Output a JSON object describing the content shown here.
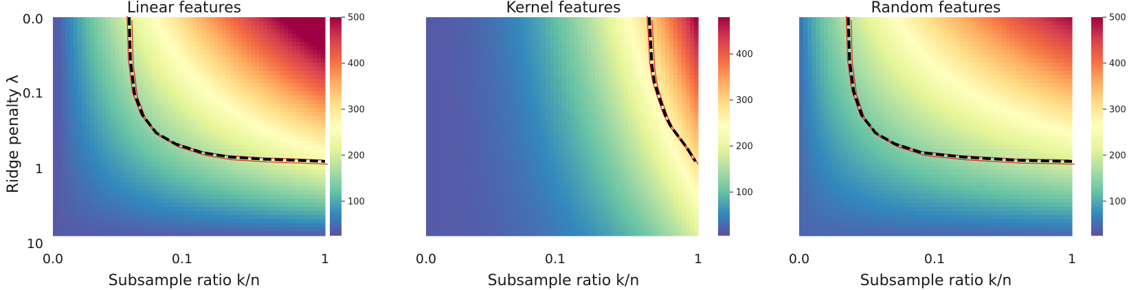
{
  "figure": {
    "ylabel": "Ridge penalty λ",
    "colorscale": [
      "#5e4fa2",
      "#3288bd",
      "#66c2a5",
      "#abdda4",
      "#e6f598",
      "#ffffbf",
      "#fee08b",
      "#fdae61",
      "#f46d43",
      "#d53e4f",
      "#9e0142"
    ],
    "contour_colors": {
      "inner": "#000000",
      "outer": "#e31a1c"
    }
  },
  "chart_data": [
    {
      "type": "heatmap",
      "title": "Linear features",
      "xlabel": "Subsample ratio k/n",
      "ylabel": "Ridge penalty λ",
      "x_ticks": [
        "0.0",
        "0.1",
        "1"
      ],
      "y_ticks": [
        "0.0",
        "0.1",
        "1",
        "10"
      ],
      "x_scale": "log-like (subsample ratio)",
      "y_scale": "log (reversed, 0.0 at top)",
      "colorbar": {
        "range": [
          25,
          500
        ],
        "ticks": [
          100,
          200,
          300,
          400,
          500
        ]
      },
      "model": {
        "a": 0.28,
        "b": 0.65,
        "p": 1.6
      },
      "contour": {
        "x": [
          0.28,
          0.285,
          0.3,
          0.33,
          0.38,
          0.45,
          0.55,
          0.65,
          0.78,
          0.9,
          1.0
        ],
        "y": [
          0.0,
          0.2,
          0.35,
          0.45,
          0.53,
          0.58,
          0.62,
          0.64,
          0.65,
          0.655,
          0.66
        ]
      }
    },
    {
      "type": "heatmap",
      "title": "Kernel features",
      "xlabel": "Subsample ratio k/n",
      "ylabel": "",
      "x_ticks": [
        "0.0",
        "0.1",
        "1"
      ],
      "y_ticks": [],
      "x_scale": "log-like (subsample ratio)",
      "y_scale": "log (reversed)",
      "colorbar": {
        "range": [
          5,
          480
        ],
        "ticks": [
          100,
          200,
          300,
          400
        ]
      },
      "model": {
        "a": 0.82,
        "b": 0.65,
        "p": 2.0
      },
      "contour": {
        "x": [
          0.82,
          0.825,
          0.83,
          0.84,
          0.86,
          0.88,
          0.9,
          0.93,
          0.96,
          0.99
        ],
        "y": [
          0.0,
          0.1,
          0.22,
          0.3,
          0.38,
          0.45,
          0.5,
          0.55,
          0.6,
          0.66
        ]
      }
    },
    {
      "type": "heatmap",
      "title": "Random features",
      "xlabel": "Subsample ratio k/n",
      "ylabel": "",
      "x_ticks": [
        "0.0",
        "0.1",
        "1"
      ],
      "y_ticks": [],
      "x_scale": "log-like (subsample ratio)",
      "y_scale": "log (reversed)",
      "colorbar": {
        "range": [
          25,
          500
        ],
        "ticks": [
          100,
          200,
          300,
          400,
          500
        ]
      },
      "model": {
        "a": 0.18,
        "b": 0.66,
        "p": 1.6
      },
      "contour": {
        "x": [
          0.18,
          0.185,
          0.2,
          0.23,
          0.28,
          0.35,
          0.45,
          0.6,
          0.8,
          1.0
        ],
        "y": [
          0.0,
          0.2,
          0.34,
          0.45,
          0.53,
          0.58,
          0.62,
          0.64,
          0.655,
          0.66
        ]
      }
    }
  ]
}
